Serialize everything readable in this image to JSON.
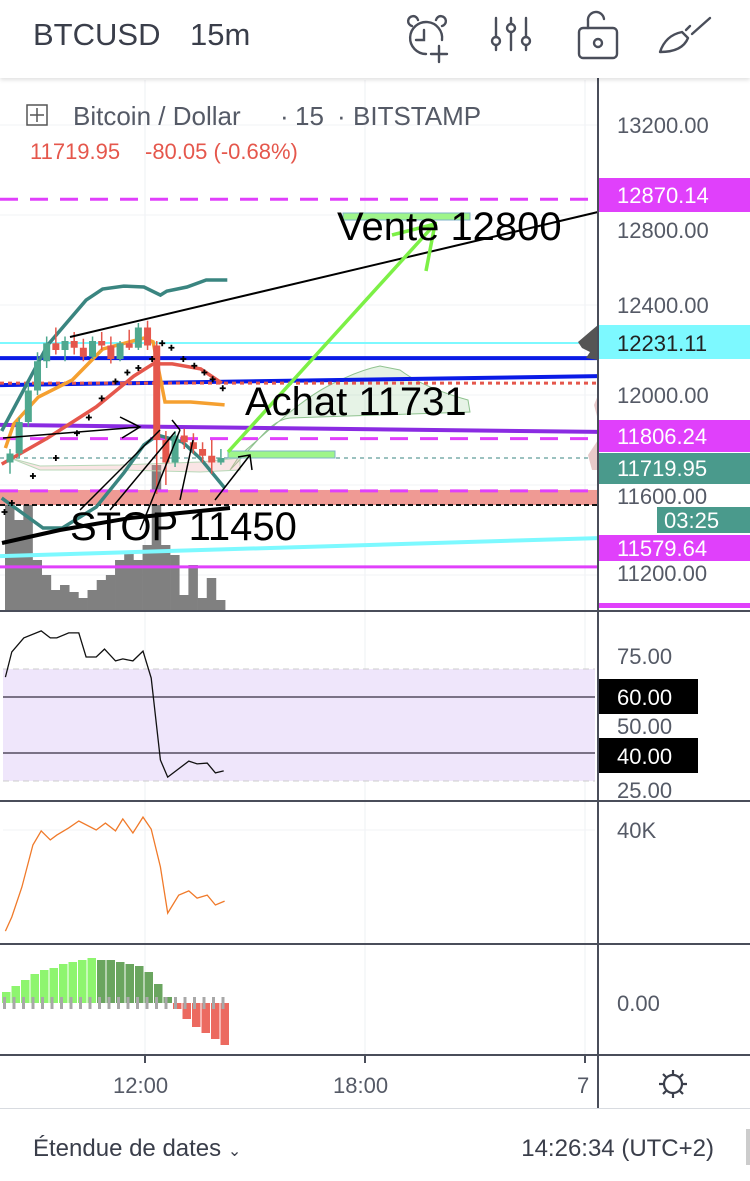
{
  "header": {
    "symbol": "BTCUSD",
    "timeframe": "15m",
    "icons": [
      "alarm-add-icon",
      "indicators-sliders-icon",
      "unlock-icon",
      "brush-icon"
    ]
  },
  "legend": {
    "title": "Bitcoin / Dollar",
    "interval": "15",
    "exchange": "BITSTAMP",
    "price": "11719.95",
    "change": "-80.05 (-0.68%)"
  },
  "annotations": {
    "sell": "Vente 12800",
    "buy": "Achat 11731",
    "stop": "STOP 11450"
  },
  "price_axis": {
    "ticks": [
      "13200.00",
      "12800.00",
      "12400.00",
      "12000.00",
      "11600.00",
      "11200.00"
    ],
    "badges": [
      {
        "label": "12870.14",
        "color": "#e040fb"
      },
      {
        "label": "12231.11",
        "color": "#7df9ff"
      },
      {
        "label": "11806.24",
        "color": "#e040fb"
      },
      {
        "label": "11719.95",
        "color": "#4a9a8c"
      },
      {
        "label": "03:25",
        "color": "#4a9a8c"
      },
      {
        "label": "11579.64",
        "color": "#e040fb"
      }
    ]
  },
  "rsi_axis": {
    "ticks": [
      "75.00",
      "50.00",
      "25.00"
    ],
    "badges": [
      "60.00",
      "40.00"
    ]
  },
  "osc_axis": {
    "ticks": [
      "40K"
    ]
  },
  "hist_axis": {
    "ticks": [
      "0.00"
    ]
  },
  "time_axis": {
    "ticks": [
      "12:00",
      "18:00",
      "7"
    ]
  },
  "footer": {
    "range_label": "Étendue de dates",
    "clock": "14:26:34 (UTC+2)"
  },
  "colors": {
    "up": "#4fa88f",
    "down": "#e5574c",
    "magenta": "#e040fb",
    "cyan": "#7df9ff",
    "blue": "#0a1be6",
    "purple": "#8a2be2",
    "teal": "#3a8580",
    "orange": "#f5a030",
    "red_ma": "#e5574c",
    "green_arrow": "#7cf046",
    "rsi_band": "#efe6fb",
    "hist_up_strong": "#8ef56f",
    "hist_up_weak": "#6aa55f",
    "hist_down": "#ec6a60"
  },
  "chart_data": {
    "type": "candlestick",
    "x_unit": "15m bar index",
    "price_range": [
      11120,
      13300
    ],
    "candles": [
      [
        11700,
        11760,
        11650,
        11740
      ],
      [
        11740,
        11900,
        11720,
        11880
      ],
      [
        11880,
        12050,
        11860,
        12020
      ],
      [
        12020,
        12190,
        12000,
        12150
      ],
      [
        12150,
        12260,
        12120,
        12230
      ],
      [
        12230,
        12300,
        12180,
        12200
      ],
      [
        12200,
        12260,
        12150,
        12240
      ],
      [
        12240,
        12280,
        12180,
        12210
      ],
      [
        12210,
        12250,
        12150,
        12170
      ],
      [
        12170,
        12260,
        12160,
        12240
      ],
      [
        12240,
        12280,
        12200,
        12220
      ],
      [
        12220,
        12260,
        12140,
        12160
      ],
      [
        12160,
        12240,
        12150,
        12230
      ],
      [
        12230,
        12290,
        12200,
        12210
      ],
      [
        12210,
        12320,
        12200,
        12300
      ],
      [
        12300,
        12330,
        12200,
        12220
      ],
      [
        12220,
        12240,
        11560,
        11800
      ],
      [
        11800,
        11840,
        11600,
        11700
      ],
      [
        11700,
        11840,
        11680,
        11820
      ],
      [
        11820,
        11850,
        11760,
        11790
      ],
      [
        11790,
        11830,
        11740,
        11760
      ],
      [
        11760,
        11790,
        11700,
        11730
      ],
      [
        11730,
        11800,
        11650,
        11700
      ],
      [
        11700,
        11760,
        11690,
        11720
      ]
    ],
    "volume": [
      112,
      90,
      117,
      50,
      35,
      20,
      25,
      18,
      12,
      20,
      30,
      35,
      50,
      58,
      50,
      65,
      145,
      65,
      55,
      15,
      45,
      12,
      32,
      10
    ],
    "bb_upper": [
      [
        -0.9,
        11840
      ],
      [
        4.1,
        12222
      ],
      [
        8.3,
        12422
      ],
      [
        10.1,
        12471
      ],
      [
        12.4,
        12484
      ],
      [
        14.6,
        12480
      ],
      [
        16.4,
        12444
      ],
      [
        17.1,
        12462
      ],
      [
        19.3,
        12480
      ],
      [
        21.4,
        12511
      ],
      [
        23.7,
        12511
      ]
    ],
    "bb_lower": [
      [
        -0.9,
        11542
      ],
      [
        3.6,
        11409
      ],
      [
        5.7,
        11409
      ],
      [
        9.4,
        11502
      ],
      [
        12.4,
        11653
      ],
      [
        14.6,
        11778
      ],
      [
        16.1,
        11822
      ],
      [
        18.8,
        11791
      ],
      [
        20.8,
        11716
      ],
      [
        23.4,
        11587
      ]
    ],
    "ma_red": [
      [
        -0.9,
        11693
      ],
      [
        4.1,
        11809
      ],
      [
        9.4,
        11947
      ],
      [
        13.5,
        12084
      ],
      [
        15.6,
        12138
      ],
      [
        17.7,
        12138
      ],
      [
        20.8,
        12116
      ],
      [
        23.1,
        12053
      ]
    ],
    "ma_orange": [
      [
        -0.5,
        11764
      ],
      [
        0.4,
        11871
      ],
      [
        3.1,
        11991
      ],
      [
        6.8,
        12067
      ],
      [
        10.1,
        12204
      ],
      [
        14.6,
        12253
      ],
      [
        15.6,
        12236
      ],
      [
        16.9,
        11969
      ],
      [
        19.7,
        11969
      ],
      [
        23.4,
        11956
      ]
    ],
    "sar": [
      [
        -0.6,
        11480
      ],
      [
        0.2,
        11520
      ],
      [
        2.5,
        11640
      ],
      [
        5.0,
        11720
      ],
      [
        7.3,
        11830
      ],
      [
        8.6,
        11900
      ],
      [
        10.0,
        11985
      ],
      [
        11.5,
        12060
      ],
      [
        12.8,
        12100
      ],
      [
        14.0,
        12120
      ],
      [
        15.5,
        12160
      ],
      [
        16.6,
        12230
      ],
      [
        17.6,
        12210
      ],
      [
        18.9,
        12160
      ],
      [
        20.1,
        12130
      ],
      [
        21.2,
        12100
      ],
      [
        22.1,
        12070
      ],
      [
        23.2,
        12030
      ]
    ],
    "levels": [
      {
        "name": "resistance-12870",
        "price": [
          12870.14,
          12870.14
        ],
        "style": "dashed",
        "color": "magenta",
        "width": 3
      },
      {
        "name": "level-12231",
        "price": [
          12231.11,
          12231.11
        ],
        "style": "solid",
        "color": "cyan",
        "width": 2
      },
      {
        "name": "blue-level-flat",
        "price": [
          12164,
          12164
        ],
        "style": "solid",
        "color": "blue",
        "width": 4
      },
      {
        "name": "blue-level-sloped",
        "price": [
          12044,
          12084
        ],
        "style": "solid",
        "color": "blue",
        "width": 4
      },
      {
        "name": "red-dotted-level",
        "price": [
          12053,
          12053
        ],
        "style": "dotted",
        "color": "red_ma",
        "width": 3
      },
      {
        "name": "purple-trendline",
        "price": [
          11867,
          11836
        ],
        "style": "solid",
        "color": "purple",
        "width": 4
      },
      {
        "name": "level-11806",
        "price": [
          11806.24,
          11806.24
        ],
        "style": "dashed",
        "color": "magenta",
        "width": 3
      },
      {
        "name": "current-price-line",
        "price": [
          11719.95,
          11719.95
        ],
        "style": "dotted",
        "color": "teal",
        "width": 1
      },
      {
        "name": "stop-zone-top",
        "price": [
          11574,
          11574
        ],
        "style": "dashed",
        "color": "magenta",
        "width": 3
      },
      {
        "name": "cyan-trendline",
        "price": [
          11284,
          11364
        ],
        "style": "solid",
        "color": "cyan",
        "width": 4
      },
      {
        "name": "magenta-support",
        "price": [
          11236,
          11236
        ],
        "style": "solid",
        "color": "magenta",
        "width": 3
      }
    ],
    "stop_zone": [
      11511,
      11578
    ],
    "rsi": [
      [
        -0.5,
        67.1
      ],
      [
        0.2,
        76.1
      ],
      [
        1.5,
        81.1
      ],
      [
        3.4,
        83.6
      ],
      [
        4.4,
        81.1
      ],
      [
        5.1,
        81.1
      ],
      [
        6.4,
        82.9
      ],
      [
        7.5,
        82.9
      ],
      [
        8.3,
        74.3
      ],
      [
        9.4,
        74.3
      ],
      [
        10.3,
        77.1
      ],
      [
        11.5,
        72.9
      ],
      [
        12.3,
        73.6
      ],
      [
        13.4,
        72.9
      ],
      [
        14.5,
        76.4
      ],
      [
        15.4,
        66.8
      ],
      [
        16.4,
        37.5
      ],
      [
        17.2,
        31.4
      ],
      [
        19.5,
        37.1
      ],
      [
        20.4,
        36.1
      ],
      [
        21.5,
        36.4
      ],
      [
        22.4,
        32.9
      ],
      [
        23.3,
        33.6
      ]
    ],
    "rsi_band": [
      30,
      70
    ],
    "rsi_levels": [
      60,
      40
    ],
    "oscillator_k": [
      [
        -0.5,
        6.3
      ],
      [
        0.2,
        11
      ],
      [
        1.3,
        21
      ],
      [
        2.5,
        35
      ],
      [
        3.4,
        39.7
      ],
      [
        4.4,
        36.7
      ],
      [
        5.1,
        38.3
      ],
      [
        6.4,
        40.7
      ],
      [
        7.5,
        43
      ],
      [
        9.4,
        40
      ],
      [
        10.4,
        42.3
      ],
      [
        11.5,
        39.7
      ],
      [
        12.3,
        43.7
      ],
      [
        13.4,
        39
      ],
      [
        14.5,
        44.3
      ],
      [
        15.4,
        40.3
      ],
      [
        16.4,
        27.7
      ],
      [
        17.2,
        12.3
      ],
      [
        18.4,
        18.3
      ],
      [
        19.5,
        19.7
      ],
      [
        20.4,
        17.3
      ],
      [
        21.5,
        18.3
      ],
      [
        22.4,
        15
      ],
      [
        23.4,
        16.3
      ]
    ],
    "histogram": [
      1.1,
      1.7,
      2.3,
      2.9,
      3.3,
      3.5,
      3.9,
      4.1,
      4.3,
      4.5,
      4.3,
      4.3,
      4.1,
      3.9,
      3.7,
      3.1,
      1.9,
      0.6,
      -0.6,
      -1.6,
      -2.4,
      -3.0,
      -3.6,
      -4.2
    ]
  }
}
